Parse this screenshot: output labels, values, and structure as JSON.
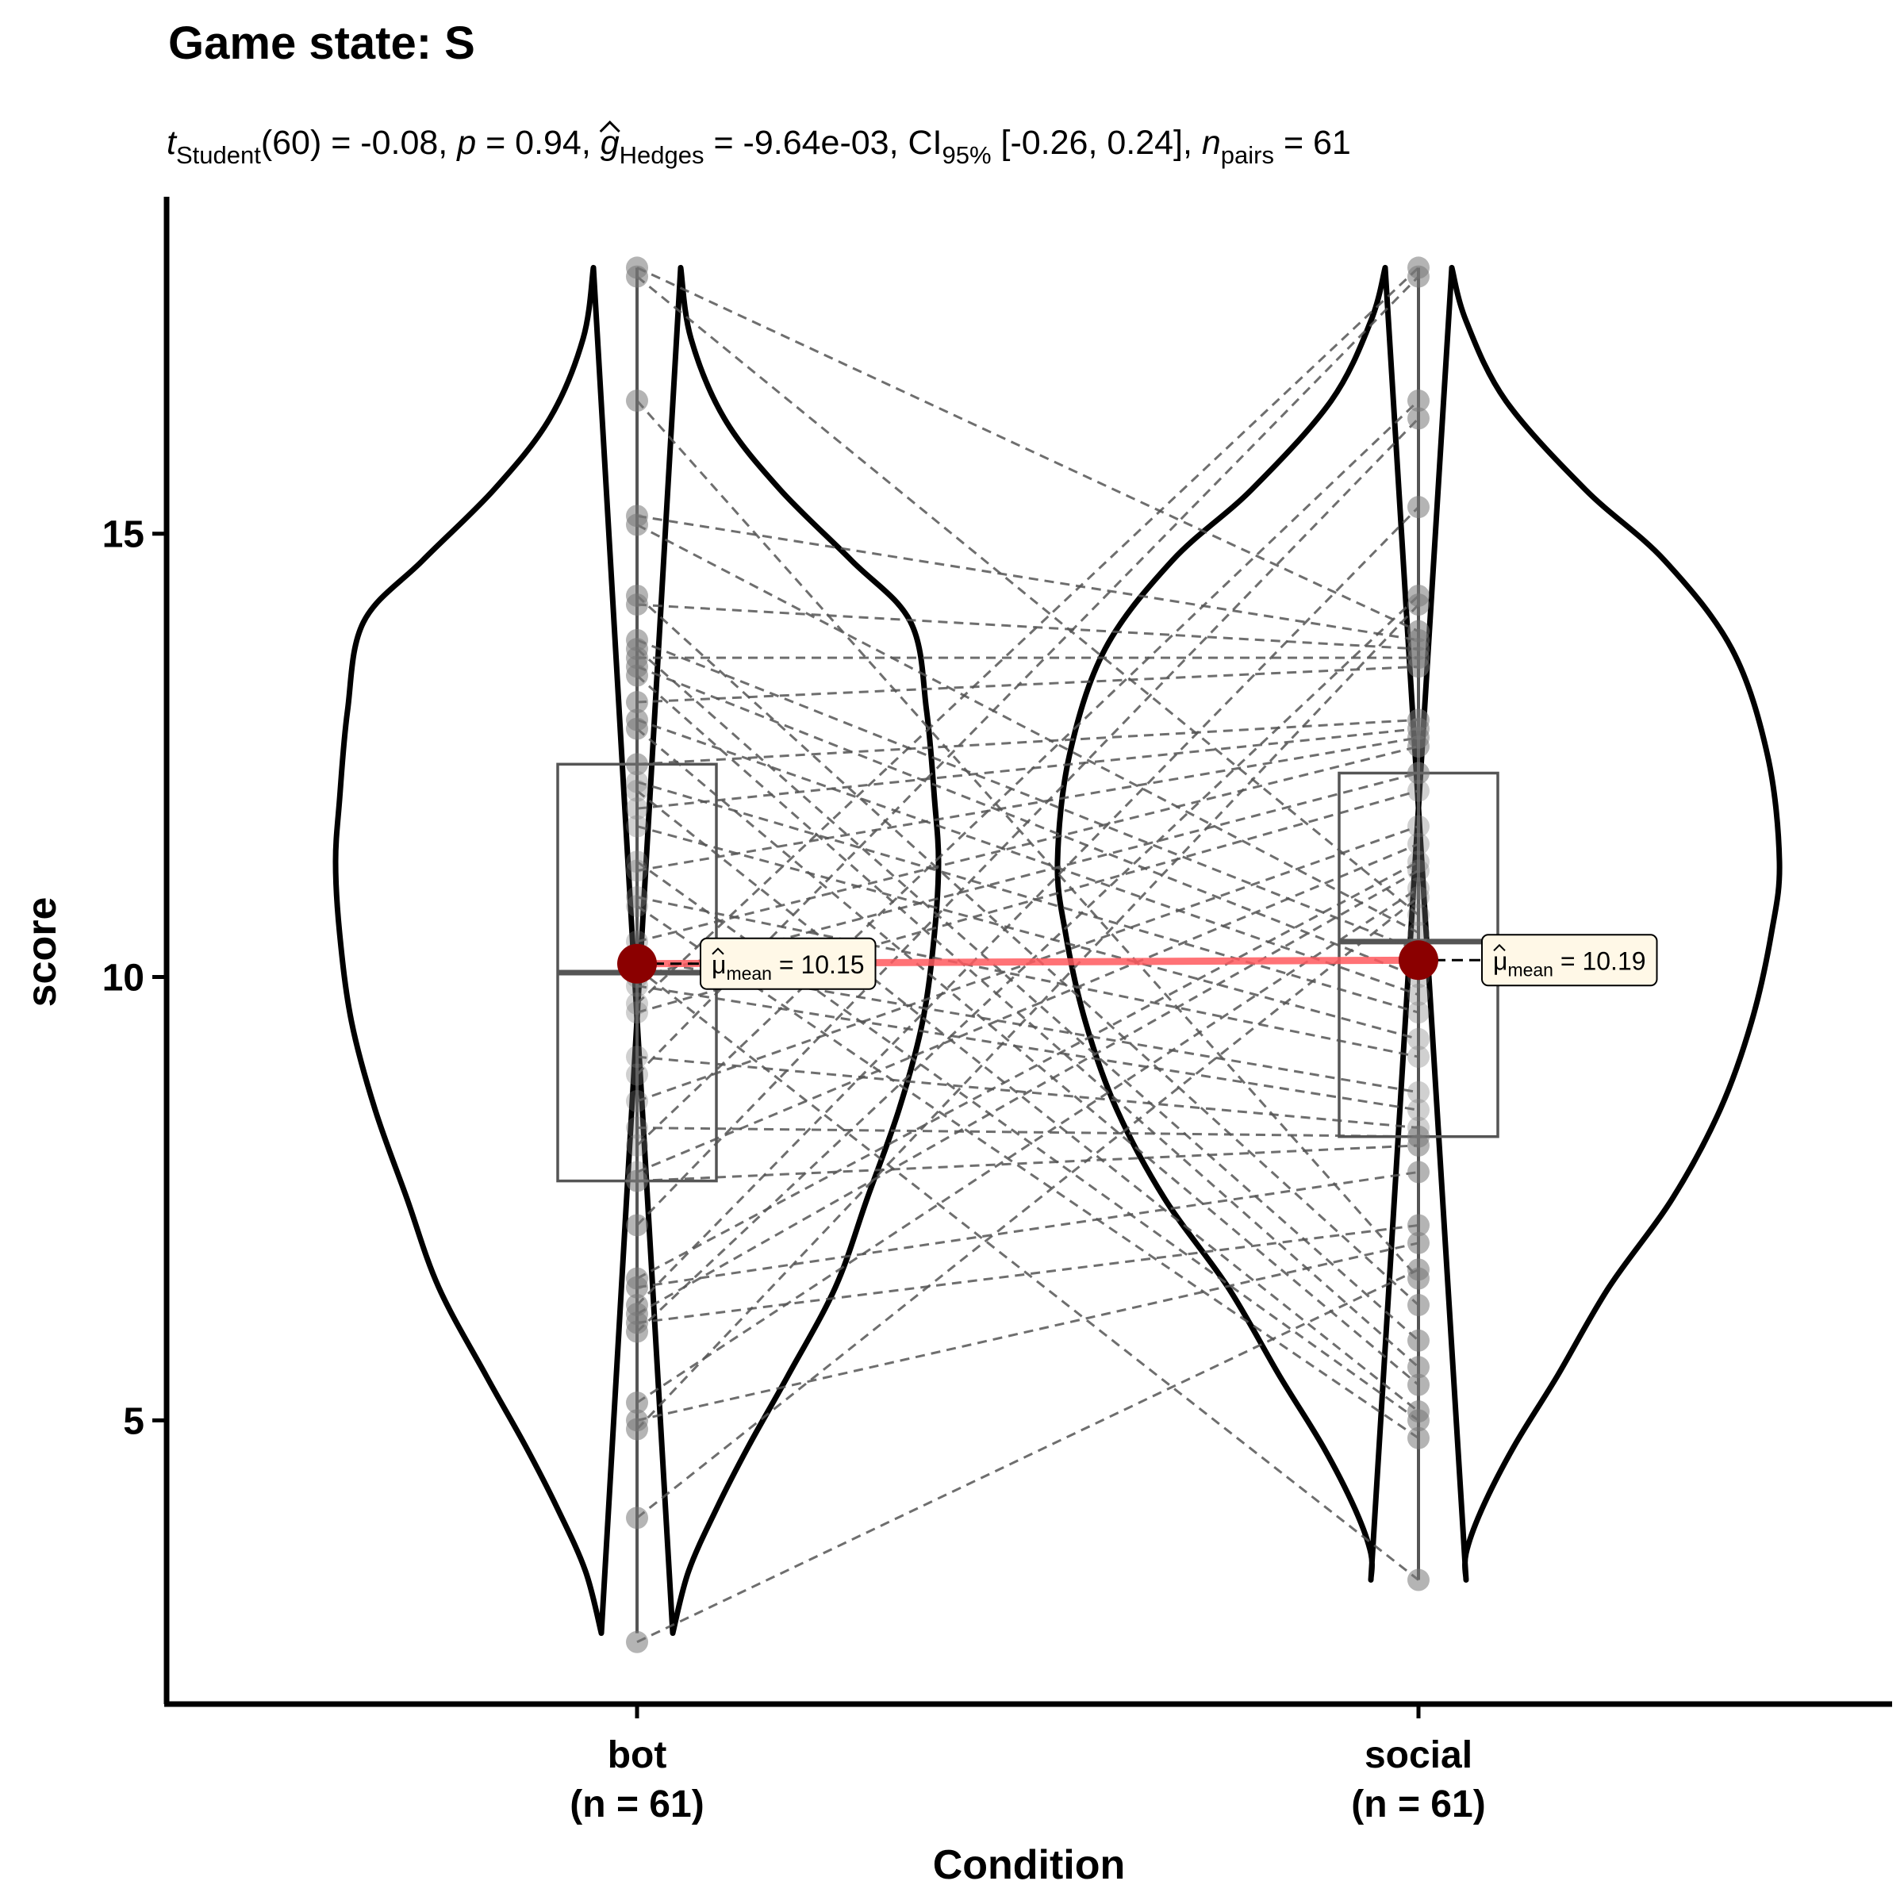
{
  "chart_data": {
    "type": "violin",
    "title": "Game state: S",
    "subtitle": {
      "t_symbol": "t",
      "t_sub": "Student",
      "t_rest": "(60) = -0.08, ",
      "p_symbol": "p",
      "p_rest": " = 0.94, ",
      "g_symbol": "g",
      "g_sub": "Hedges",
      "g_rest": " = -9.64e-03, CI",
      "ci_sub": "95%",
      "ci_rest": " [-0.26, 0.24], ",
      "n_symbol": "n",
      "n_sub": "pairs",
      "n_rest": " = 61"
    },
    "xlabel": "Condition",
    "ylabel": "score",
    "ylim": [
      1.8,
      18.8
    ],
    "yticks": [
      5,
      10,
      15
    ],
    "categories": [
      {
        "name": "bot",
        "n_label": "(n = 61)"
      },
      {
        "name": "social",
        "n_label": "(n = 61)"
      }
    ],
    "series": [
      {
        "name": "bot",
        "points": [
          18.0,
          17.9,
          16.5,
          15.2,
          15.1,
          14.3,
          14.2,
          13.8,
          13.7,
          13.6,
          13.5,
          13.4,
          13.1,
          12.9,
          12.8,
          12.4,
          12.2,
          12.1,
          11.9,
          11.7,
          11.3,
          11.2,
          10.9,
          10.8,
          10.4,
          10.2,
          10.1,
          10.0,
          9.9,
          9.7,
          9.6,
          9.1,
          8.9,
          8.6,
          8.3,
          8.1,
          7.8,
          7.7,
          7.2,
          6.6,
          6.5,
          6.3,
          6.2,
          6.1,
          6.0,
          5.2,
          5.0,
          4.9,
          3.9,
          2.5
        ],
        "mean": 10.15,
        "mean_label": "10.15",
        "box": {
          "q1": 7.7,
          "median": 10.05,
          "q3": 12.4
        },
        "violin_top": 18.0,
        "violin_bottom": 2.6
      },
      {
        "name": "social",
        "points": [
          18.0,
          17.9,
          16.5,
          16.3,
          15.3,
          14.3,
          14.2,
          13.9,
          13.8,
          13.7,
          13.6,
          13.5,
          12.9,
          12.8,
          12.7,
          12.6,
          12.3,
          12.1,
          11.7,
          11.5,
          11.3,
          11.2,
          11.0,
          10.9,
          10.7,
          10.5,
          10.3,
          10.0,
          9.8,
          9.6,
          9.3,
          9.1,
          8.7,
          8.5,
          8.3,
          8.2,
          8.1,
          7.8,
          7.2,
          7.0,
          6.7,
          6.6,
          6.3,
          5.9,
          5.6,
          5.4,
          5.1,
          5.0,
          4.8,
          3.2
        ],
        "mean": 10.19,
        "mean_label": "10.19",
        "box": {
          "q1": 8.2,
          "median": 10.4,
          "q3": 12.3
        },
        "violin_top": 18.0,
        "violin_bottom": 3.2
      }
    ],
    "mean_symbol": "μ",
    "mean_sub": "mean",
    "mean_eq": " = ",
    "colors": {
      "violin": "#000000",
      "box": "#555555",
      "points": "#777777",
      "pair_lines": "#555555",
      "mean_point": "#8b0000",
      "mean_line": "#ff5a5f",
      "label_fill": "#fff8e7"
    }
  }
}
